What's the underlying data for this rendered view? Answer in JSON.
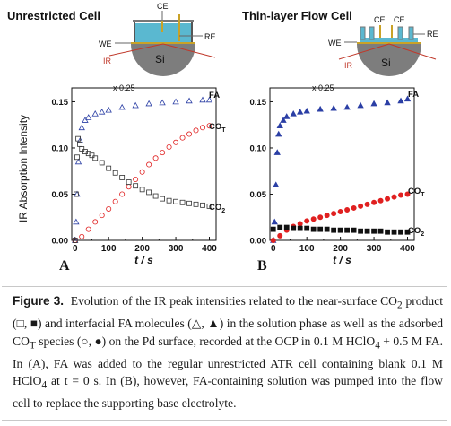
{
  "panel_titles": {
    "a": "Unrestricted Cell",
    "b": "Thin-layer  Flow Cell"
  },
  "cell_labels": {
    "ce": "CE",
    "re": "RE",
    "we": "WE",
    "ir": "IR",
    "si": "Si"
  },
  "panel_letters": {
    "a": "A",
    "b": "B"
  },
  "y_axis_title": "IR Absorption Intensity",
  "x_axis_title": "t / s",
  "x_ticks": [
    "0",
    "100",
    "200",
    "300",
    "400"
  ],
  "y_ticks": [
    "0.00",
    "0.05",
    "0.10",
    "0.15"
  ],
  "scale_note": "x 0.25",
  "series_labels": {
    "fa": "FA",
    "cot": "CO",
    "cot_sub": "T",
    "co2": "CO",
    "co2_sub": "2"
  },
  "colors": {
    "fa": "#2b3fa5",
    "cot": "#e02020",
    "co2": "#333333",
    "electrolyte": "#5ab8d0",
    "si": "#7d7d7d"
  },
  "caption": {
    "label": "Figure 3.",
    "text_1": "Evolution of the IR peak intensities related to the near-surface CO",
    "sub_2": "2",
    "text_2": " product (",
    "text_3": ") and interfacial FA molecules (",
    "text_4": ") in the solution phase as well as the adsorbed CO",
    "sub_t": "T",
    "text_5": " species (",
    "text_6": ") on the Pd surface, recorded at the OCP in 0.1 M HClO",
    "sub_4a": "4",
    "text_7": " + 0.5 M FA. In (A), FA was added to the regular unrestricted ATR cell containing blank 0.1 M HClO",
    "sub_4b": "4",
    "text_8": " at t = 0 s. In (B), however, FA-containing solution was pumped into the flow cell to replace the supporting base electrolyte."
  },
  "chart_data": [
    {
      "type": "scatter",
      "title": "Unrestricted Cell",
      "panel": "A",
      "xlabel": "t / s",
      "ylabel": "IR Absorption Intensity",
      "xlim": [
        -10,
        420
      ],
      "ylim": [
        0,
        0.165
      ],
      "grid": false,
      "series": [
        {
          "name": "FA",
          "marker": "triangle-open",
          "color": "#2b3fa5",
          "note": "x 0.25",
          "points": [
            [
              0,
              0.0
            ],
            [
              3,
              0.02
            ],
            [
              6,
              0.05
            ],
            [
              10,
              0.085
            ],
            [
              15,
              0.108
            ],
            [
              20,
              0.122
            ],
            [
              30,
              0.13
            ],
            [
              40,
              0.133
            ],
            [
              60,
              0.137
            ],
            [
              80,
              0.139
            ],
            [
              100,
              0.141
            ],
            [
              140,
              0.144
            ],
            [
              180,
              0.146
            ],
            [
              220,
              0.148
            ],
            [
              260,
              0.149
            ],
            [
              300,
              0.15
            ],
            [
              340,
              0.151
            ],
            [
              380,
              0.152
            ],
            [
              400,
              0.152
            ]
          ]
        },
        {
          "name": "COT",
          "marker": "circle-open",
          "color": "#e02020",
          "points": [
            [
              0,
              0.0
            ],
            [
              20,
              0.004
            ],
            [
              40,
              0.012
            ],
            [
              60,
              0.02
            ],
            [
              80,
              0.027
            ],
            [
              100,
              0.034
            ],
            [
              120,
              0.042
            ],
            [
              140,
              0.05
            ],
            [
              160,
              0.058
            ],
            [
              180,
              0.066
            ],
            [
              200,
              0.074
            ],
            [
              220,
              0.082
            ],
            [
              240,
              0.089
            ],
            [
              260,
              0.095
            ],
            [
              280,
              0.101
            ],
            [
              300,
              0.106
            ],
            [
              320,
              0.111
            ],
            [
              340,
              0.115
            ],
            [
              360,
              0.119
            ],
            [
              380,
              0.122
            ],
            [
              400,
              0.124
            ]
          ]
        },
        {
          "name": "CO2",
          "marker": "square-open",
          "color": "#333333",
          "points": [
            [
              0,
              0.0
            ],
            [
              3,
              0.05
            ],
            [
              6,
              0.09
            ],
            [
              9,
              0.11
            ],
            [
              14,
              0.104
            ],
            [
              20,
              0.099
            ],
            [
              30,
              0.096
            ],
            [
              40,
              0.094
            ],
            [
              50,
              0.092
            ],
            [
              60,
              0.089
            ],
            [
              80,
              0.084
            ],
            [
              100,
              0.078
            ],
            [
              120,
              0.073
            ],
            [
              140,
              0.068
            ],
            [
              160,
              0.063
            ],
            [
              180,
              0.059
            ],
            [
              200,
              0.055
            ],
            [
              220,
              0.052
            ],
            [
              240,
              0.048
            ],
            [
              260,
              0.045
            ],
            [
              280,
              0.043
            ],
            [
              300,
              0.042
            ],
            [
              320,
              0.041
            ],
            [
              340,
              0.04
            ],
            [
              360,
              0.039
            ],
            [
              380,
              0.038
            ],
            [
              400,
              0.037
            ]
          ]
        }
      ]
    },
    {
      "type": "scatter",
      "title": "Thin-layer  Flow Cell",
      "panel": "B",
      "xlabel": "t / s",
      "ylabel": "",
      "xlim": [
        -10,
        420
      ],
      "ylim": [
        0,
        0.165
      ],
      "grid": false,
      "series": [
        {
          "name": "FA",
          "marker": "triangle-filled",
          "color": "#2b3fa5",
          "note": "x 0.25",
          "points": [
            [
              0,
              0.0
            ],
            [
              4,
              0.02
            ],
            [
              8,
              0.06
            ],
            [
              12,
              0.095
            ],
            [
              16,
              0.115
            ],
            [
              20,
              0.124
            ],
            [
              30,
              0.13
            ],
            [
              40,
              0.134
            ],
            [
              60,
              0.137
            ],
            [
              80,
              0.139
            ],
            [
              100,
              0.14
            ],
            [
              140,
              0.142
            ],
            [
              180,
              0.143
            ],
            [
              220,
              0.144
            ],
            [
              260,
              0.146
            ],
            [
              300,
              0.148
            ],
            [
              340,
              0.149
            ],
            [
              380,
              0.151
            ],
            [
              400,
              0.153
            ]
          ]
        },
        {
          "name": "COT",
          "marker": "circle-filled",
          "color": "#e02020",
          "points": [
            [
              0,
              0.0
            ],
            [
              20,
              0.005
            ],
            [
              40,
              0.011
            ],
            [
              60,
              0.015
            ],
            [
              80,
              0.018
            ],
            [
              100,
              0.021
            ],
            [
              120,
              0.023
            ],
            [
              140,
              0.025
            ],
            [
              160,
              0.027
            ],
            [
              180,
              0.029
            ],
            [
              200,
              0.031
            ],
            [
              220,
              0.033
            ],
            [
              240,
              0.035
            ],
            [
              260,
              0.037
            ],
            [
              280,
              0.039
            ],
            [
              300,
              0.041
            ],
            [
              320,
              0.043
            ],
            [
              340,
              0.045
            ],
            [
              360,
              0.047
            ],
            [
              380,
              0.049
            ],
            [
              400,
              0.05
            ]
          ]
        },
        {
          "name": "CO2",
          "marker": "square-filled",
          "color": "#111111",
          "points": [
            [
              0,
              0.012
            ],
            [
              20,
              0.014
            ],
            [
              40,
              0.014
            ],
            [
              60,
              0.013
            ],
            [
              80,
              0.013
            ],
            [
              100,
              0.013
            ],
            [
              120,
              0.012
            ],
            [
              140,
              0.012
            ],
            [
              160,
              0.012
            ],
            [
              180,
              0.011
            ],
            [
              200,
              0.011
            ],
            [
              220,
              0.011
            ],
            [
              240,
              0.011
            ],
            [
              260,
              0.01
            ],
            [
              280,
              0.01
            ],
            [
              300,
              0.01
            ],
            [
              320,
              0.01
            ],
            [
              340,
              0.009
            ],
            [
              360,
              0.009
            ],
            [
              380,
              0.009
            ],
            [
              400,
              0.009
            ]
          ]
        }
      ]
    }
  ]
}
